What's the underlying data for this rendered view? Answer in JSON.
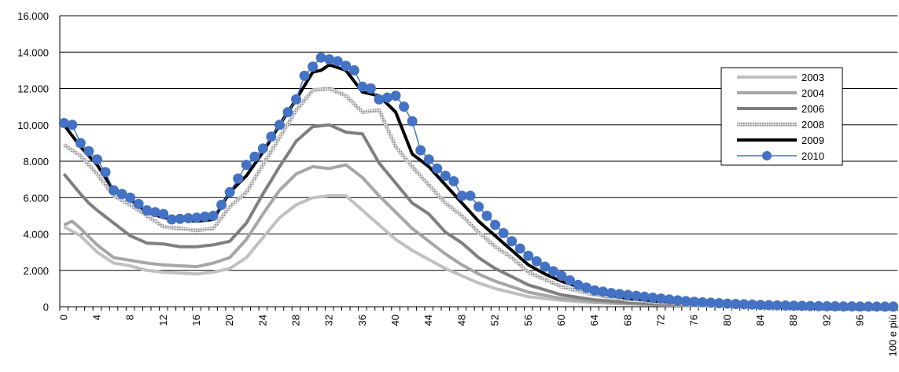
{
  "chart_data": {
    "type": "line",
    "x_tick_labels": [
      "0",
      "4",
      "8",
      "12",
      "16",
      "20",
      "24",
      "28",
      "32",
      "36",
      "40",
      "44",
      "48",
      "52",
      "56",
      "60",
      "64",
      "68",
      "72",
      "76",
      "80",
      "84",
      "88",
      "92",
      "96",
      "100 e più"
    ],
    "x_tick_step": 4,
    "y_tick_labels": [
      "0",
      "2.000",
      "4.000",
      "6.000",
      "8.000",
      "10.000",
      "12.000",
      "14.000",
      "16.000"
    ],
    "ylim": [
      0,
      16000
    ],
    "grid": "horizontal",
    "legend_position": "right",
    "series": [
      {
        "name": "2003",
        "color": "#c0c0c0",
        "style": "solid",
        "anchors": [
          [
            0,
            4400
          ],
          [
            2,
            3900
          ],
          [
            4,
            3000
          ],
          [
            6,
            2400
          ],
          [
            8,
            2250
          ],
          [
            10,
            2000
          ],
          [
            12,
            1900
          ],
          [
            14,
            1850
          ],
          [
            16,
            1800
          ],
          [
            18,
            1900
          ],
          [
            20,
            2100
          ],
          [
            22,
            2700
          ],
          [
            24,
            3800
          ],
          [
            26,
            4900
          ],
          [
            28,
            5600
          ],
          [
            30,
            6000
          ],
          [
            32,
            6100
          ],
          [
            34,
            6100
          ],
          [
            36,
            5300
          ],
          [
            38,
            4500
          ],
          [
            40,
            3700
          ],
          [
            42,
            3100
          ],
          [
            44,
            2600
          ],
          [
            46,
            2100
          ],
          [
            48,
            1700
          ],
          [
            50,
            1300
          ],
          [
            52,
            1000
          ],
          [
            56,
            550
          ],
          [
            60,
            350
          ],
          [
            64,
            220
          ],
          [
            68,
            150
          ],
          [
            72,
            100
          ],
          [
            76,
            70
          ],
          [
            80,
            50
          ],
          [
            84,
            30
          ],
          [
            90,
            15
          ],
          [
            96,
            5
          ],
          [
            100,
            0
          ]
        ]
      },
      {
        "name": "2004",
        "color": "#a6a6a6",
        "style": "solid",
        "anchors": [
          [
            0,
            4500
          ],
          [
            1,
            4700
          ],
          [
            2,
            4300
          ],
          [
            4,
            3400
          ],
          [
            6,
            2700
          ],
          [
            8,
            2550
          ],
          [
            10,
            2400
          ],
          [
            12,
            2300
          ],
          [
            14,
            2250
          ],
          [
            16,
            2200
          ],
          [
            18,
            2400
          ],
          [
            20,
            2700
          ],
          [
            22,
            3700
          ],
          [
            24,
            5100
          ],
          [
            26,
            6400
          ],
          [
            28,
            7300
          ],
          [
            30,
            7700
          ],
          [
            32,
            7600
          ],
          [
            34,
            7800
          ],
          [
            36,
            7100
          ],
          [
            38,
            6100
          ],
          [
            40,
            5200
          ],
          [
            42,
            4300
          ],
          [
            44,
            3600
          ],
          [
            46,
            2900
          ],
          [
            48,
            2300
          ],
          [
            50,
            1800
          ],
          [
            52,
            1400
          ],
          [
            56,
            800
          ],
          [
            60,
            450
          ],
          [
            64,
            280
          ],
          [
            68,
            180
          ],
          [
            72,
            120
          ],
          [
            76,
            80
          ],
          [
            80,
            55
          ],
          [
            84,
            35
          ],
          [
            90,
            15
          ],
          [
            96,
            5
          ],
          [
            100,
            0
          ]
        ]
      },
      {
        "name": "2006",
        "color": "#7f7f7f",
        "style": "solid",
        "anchors": [
          [
            0,
            7300
          ],
          [
            2,
            6200
          ],
          [
            3,
            5700
          ],
          [
            4,
            5300
          ],
          [
            6,
            4600
          ],
          [
            8,
            3900
          ],
          [
            10,
            3500
          ],
          [
            12,
            3450
          ],
          [
            14,
            3300
          ],
          [
            16,
            3300
          ],
          [
            18,
            3400
          ],
          [
            20,
            3600
          ],
          [
            22,
            4600
          ],
          [
            24,
            6200
          ],
          [
            26,
            7700
          ],
          [
            28,
            9100
          ],
          [
            30,
            9900
          ],
          [
            32,
            10000
          ],
          [
            34,
            9600
          ],
          [
            36,
            9500
          ],
          [
            38,
            7900
          ],
          [
            40,
            6800
          ],
          [
            42,
            5700
          ],
          [
            44,
            5100
          ],
          [
            46,
            4100
          ],
          [
            48,
            3500
          ],
          [
            50,
            2700
          ],
          [
            52,
            2100
          ],
          [
            56,
            1200
          ],
          [
            60,
            650
          ],
          [
            64,
            380
          ],
          [
            68,
            230
          ],
          [
            72,
            150
          ],
          [
            76,
            100
          ],
          [
            80,
            65
          ],
          [
            84,
            40
          ],
          [
            90,
            18
          ],
          [
            96,
            6
          ],
          [
            100,
            0
          ]
        ]
      },
      {
        "name": "2008",
        "color": "#a9a9a9",
        "style": "hatched",
        "anchors": [
          [
            0,
            8900
          ],
          [
            2,
            8300
          ],
          [
            4,
            7300
          ],
          [
            6,
            6100
          ],
          [
            8,
            5600
          ],
          [
            10,
            5000
          ],
          [
            12,
            4400
          ],
          [
            14,
            4300
          ],
          [
            16,
            4200
          ],
          [
            18,
            4300
          ],
          [
            20,
            5500
          ],
          [
            22,
            6300
          ],
          [
            24,
            7800
          ],
          [
            26,
            9300
          ],
          [
            28,
            10800
          ],
          [
            30,
            11900
          ],
          [
            32,
            12000
          ],
          [
            34,
            11600
          ],
          [
            36,
            10700
          ],
          [
            38,
            10800
          ],
          [
            40,
            8800
          ],
          [
            42,
            7700
          ],
          [
            44,
            6700
          ],
          [
            46,
            5700
          ],
          [
            48,
            5000
          ],
          [
            50,
            4100
          ],
          [
            52,
            3300
          ],
          [
            54,
            2700
          ],
          [
            56,
            1900
          ],
          [
            58,
            1500
          ],
          [
            60,
            1100
          ],
          [
            64,
            650
          ],
          [
            68,
            380
          ],
          [
            72,
            240
          ],
          [
            76,
            150
          ],
          [
            80,
            95
          ],
          [
            84,
            55
          ],
          [
            90,
            25
          ],
          [
            96,
            8
          ],
          [
            100,
            0
          ]
        ]
      },
      {
        "name": "2009",
        "color": "#000000",
        "style": "solid",
        "anchors": [
          [
            0,
            10000
          ],
          [
            2,
            8800
          ],
          [
            4,
            7800
          ],
          [
            6,
            6400
          ],
          [
            8,
            5900
          ],
          [
            10,
            5200
          ],
          [
            12,
            4900
          ],
          [
            14,
            4800
          ],
          [
            16,
            4700
          ],
          [
            18,
            4800
          ],
          [
            20,
            6300
          ],
          [
            22,
            7200
          ],
          [
            24,
            8500
          ],
          [
            26,
            10000
          ],
          [
            28,
            11400
          ],
          [
            30,
            12900
          ],
          [
            31,
            13000
          ],
          [
            32,
            13300
          ],
          [
            34,
            13000
          ],
          [
            36,
            11800
          ],
          [
            38,
            11600
          ],
          [
            40,
            10700
          ],
          [
            42,
            8400
          ],
          [
            44,
            7700
          ],
          [
            46,
            6700
          ],
          [
            48,
            5700
          ],
          [
            50,
            4700
          ],
          [
            52,
            3900
          ],
          [
            54,
            3100
          ],
          [
            56,
            2300
          ],
          [
            58,
            1800
          ],
          [
            60,
            1400
          ],
          [
            64,
            800
          ],
          [
            68,
            460
          ],
          [
            72,
            290
          ],
          [
            76,
            180
          ],
          [
            80,
            115
          ],
          [
            84,
            65
          ],
          [
            90,
            28
          ],
          [
            96,
            9
          ],
          [
            100,
            0
          ]
        ]
      },
      {
        "name": "2010",
        "color": "#4472c4",
        "style": "marker",
        "anchors": [
          [
            0,
            10100
          ],
          [
            1,
            10000
          ],
          [
            2,
            9000
          ],
          [
            4,
            8100
          ],
          [
            5,
            7400
          ],
          [
            6,
            6400
          ],
          [
            8,
            6000
          ],
          [
            10,
            5300
          ],
          [
            12,
            5100
          ],
          [
            13,
            4800
          ],
          [
            16,
            4900
          ],
          [
            18,
            5000
          ],
          [
            19,
            5600
          ],
          [
            20,
            6300
          ],
          [
            22,
            7800
          ],
          [
            24,
            8700
          ],
          [
            26,
            10000
          ],
          [
            28,
            11400
          ],
          [
            29,
            12700
          ],
          [
            31,
            13700
          ],
          [
            33,
            13500
          ],
          [
            35,
            13000
          ],
          [
            36,
            12100
          ],
          [
            37,
            12000
          ],
          [
            38,
            11400
          ],
          [
            40,
            11600
          ],
          [
            41,
            11000
          ],
          [
            42,
            10200
          ],
          [
            43,
            8600
          ],
          [
            45,
            7600
          ],
          [
            46,
            7200
          ],
          [
            47,
            6900
          ],
          [
            48,
            6100
          ],
          [
            49,
            6100
          ],
          [
            50,
            5500
          ],
          [
            52,
            4500
          ],
          [
            54,
            3600
          ],
          [
            56,
            2800
          ],
          [
            58,
            2200
          ],
          [
            60,
            1700
          ],
          [
            62,
            1200
          ],
          [
            64,
            900
          ],
          [
            66,
            750
          ],
          [
            68,
            650
          ],
          [
            70,
            550
          ],
          [
            72,
            450
          ],
          [
            74,
            350
          ],
          [
            76,
            270
          ],
          [
            80,
            170
          ],
          [
            84,
            100
          ],
          [
            88,
            55
          ],
          [
            92,
            25
          ],
          [
            96,
            10
          ],
          [
            100,
            5
          ]
        ]
      }
    ]
  }
}
